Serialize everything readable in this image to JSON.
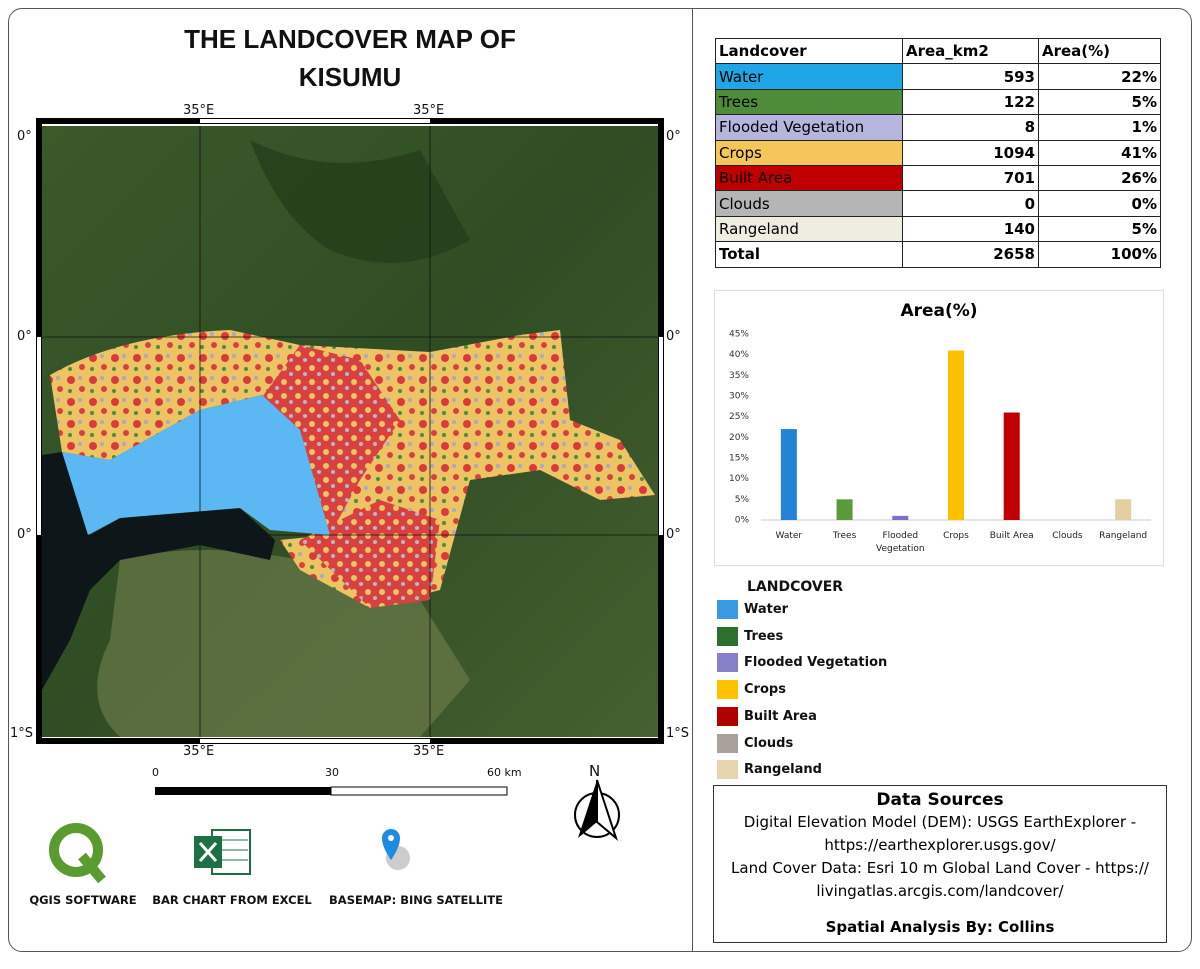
{
  "title": {
    "line1": "THE LANDCOVER MAP OF",
    "line2": "KISUMU"
  },
  "map": {
    "top_labels": [
      "35°E",
      "35°E"
    ],
    "bottom_labels": [
      "35°E",
      "35°E"
    ],
    "left_labels": [
      "0°",
      "0°",
      "0°",
      "1°S"
    ],
    "right_labels": [
      "0°",
      "0°",
      "0°",
      "1°S"
    ]
  },
  "scale_bar": {
    "labels": [
      "0",
      "30",
      "60 km"
    ]
  },
  "north_arrow": "N",
  "credits": [
    "QGIS SOFTWARE",
    "BAR CHART FROM EXCEL",
    "BASEMAP: BING SATELLITE"
  ],
  "table": {
    "header": [
      "Landcover",
      "Area_km2",
      "Area(%)"
    ],
    "rows": [
      {
        "cells": [
          "Water",
          "593",
          "22%"
        ],
        "color": "#1fa6e6"
      },
      {
        "cells": [
          "Trees",
          "122",
          "5%"
        ],
        "color": "#4f8c3a"
      },
      {
        "cells": [
          "Flooded  Vegetation",
          "8",
          "1%"
        ],
        "color": "#b6b5dd"
      },
      {
        "cells": [
          "Crops",
          "1094",
          "41%"
        ],
        "color": "#f5c65a"
      },
      {
        "cells": [
          "Built Area",
          "701",
          "26%"
        ],
        "color": "#c00000"
      },
      {
        "cells": [
          "Clouds",
          "0",
          "0%"
        ],
        "color": "#b5b5b5"
      },
      {
        "cells": [
          "Rangeland",
          "140",
          "5%"
        ],
        "color": "#efede0"
      },
      {
        "cells": [
          "Total",
          "2658",
          "100%"
        ]
      }
    ]
  },
  "chart_data": {
    "type": "bar",
    "title": "Area(%)",
    "categories": [
      "Water",
      "Trees",
      "Flooded Vegetation",
      "Crops",
      "Built Area",
      "Clouds",
      "Rangeland"
    ],
    "values": [
      22,
      5,
      1,
      41,
      26,
      0,
      5
    ],
    "colors": [
      "#2383d6",
      "#5a9a3a",
      "#7b6fc9",
      "#ffc000",
      "#c00000",
      "#a9a19a",
      "#e3cfa2"
    ],
    "ylim": [
      0,
      45
    ],
    "yticks": [
      {
        "value": 0,
        "label": "0%"
      },
      {
        "value": 5,
        "label": "5%"
      },
      {
        "value": 10,
        "label": "10%"
      },
      {
        "value": 15,
        "label": "15%"
      },
      {
        "value": 20,
        "label": "20%"
      },
      {
        "value": 25,
        "label": "25%"
      },
      {
        "value": 30,
        "label": "30%"
      },
      {
        "value": 35,
        "label": "35%"
      },
      {
        "value": 40,
        "label": "40%"
      },
      {
        "value": 45,
        "label": "45%"
      }
    ],
    "grid": false
  },
  "legend": {
    "title": "LANDCOVER",
    "items": [
      {
        "name": "Water",
        "color": "#3b9be0"
      },
      {
        "name": "Trees",
        "color": "#2e6e2e"
      },
      {
        "name": "Flooded Vegetation",
        "color": "#8580c8"
      },
      {
        "name": "Crops",
        "color": "#ffc000"
      },
      {
        "name": "Built Area",
        "color": "#b00000"
      },
      {
        "name": "Clouds",
        "color": "#a9a19a"
      },
      {
        "name": "Rangeland",
        "color": "#e6d4b0"
      }
    ]
  },
  "data_sources": {
    "title": "Data Sources",
    "lines": [
      "Digital Elevation Model (DEM): USGS EarthExplorer -",
      "https://earthexplorer.usgs.gov/",
      "Land Cover Data: Esri 10 m Global Land Cover - https://",
      "livingatlas.arcgis.com/landcover/"
    ],
    "credit": "Spatial Analysis By:  Collins"
  }
}
